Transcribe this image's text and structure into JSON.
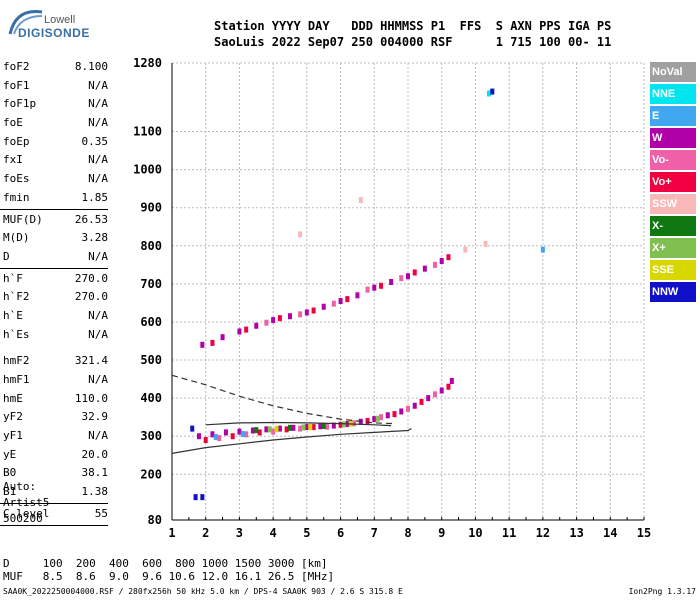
{
  "logo": {
    "brand": "Lowell",
    "product": "DIGISONDE"
  },
  "header": {
    "line1": "Station YYYY DAY   DDD HHMMSS P1  FFS  S AXN PPS IGA PS",
    "line2": "SaoLuis 2022 Sep07 250 004000 RSF      1 715 100 00- 11"
  },
  "params": {
    "group1": [
      {
        "k": "foF2",
        "v": "8.100"
      },
      {
        "k": "foF1",
        "v": "N/A"
      },
      {
        "k": "foF1p",
        "v": "N/A"
      },
      {
        "k": "foE",
        "v": "N/A"
      },
      {
        "k": "foEp",
        "v": "0.35"
      },
      {
        "k": "fxI",
        "v": "N/A"
      },
      {
        "k": "foEs",
        "v": "N/A"
      },
      {
        "k": "fmin",
        "v": "1.85"
      }
    ],
    "group2": [
      {
        "k": "MUF(D)",
        "v": "26.53"
      },
      {
        "k": "M(D)",
        "v": "3.28"
      },
      {
        "k": "D",
        "v": "N/A"
      }
    ],
    "group3": [
      {
        "k": "h`F",
        "v": "270.0"
      },
      {
        "k": "h`F2",
        "v": "270.0"
      },
      {
        "k": "h`E",
        "v": "N/A"
      },
      {
        "k": "h`Es",
        "v": "N/A"
      }
    ],
    "group4": [
      {
        "k": "hmF2",
        "v": "321.4"
      },
      {
        "k": "hmF1",
        "v": "N/A"
      },
      {
        "k": "hmE",
        "v": "110.0"
      },
      {
        "k": "yF2",
        "v": "32.9"
      },
      {
        "k": "yF1",
        "v": "N/A"
      },
      {
        "k": "yE",
        "v": "20.0"
      },
      {
        "k": "B0",
        "v": "38.1"
      },
      {
        "k": "B1",
        "v": "1.38"
      }
    ],
    "clevel": {
      "k": "C-level",
      "v": "55"
    },
    "auto": [
      "Auto:",
      "Artist5",
      "500200"
    ]
  },
  "legend": [
    {
      "name": "NoVal",
      "bg": "#a0a0a0",
      "fg": "#ffffff"
    },
    {
      "name": "NNE",
      "bg": "#00e5f0",
      "fg": "#ffffff"
    },
    {
      "name": "E",
      "bg": "#40a8f0",
      "fg": "#ffffff"
    },
    {
      "name": "W",
      "bg": "#b000a8",
      "fg": "#ffffff"
    },
    {
      "name": "Vo-",
      "bg": "#f060a8",
      "fg": "#ffffff"
    },
    {
      "name": "Vo+",
      "bg": "#f00040",
      "fg": "#ffffff"
    },
    {
      "name": "SSW",
      "bg": "#f8b8b8",
      "fg": "#ffffff"
    },
    {
      "name": "X-",
      "bg": "#107810",
      "fg": "#ffffff"
    },
    {
      "name": "X+",
      "bg": "#80c050",
      "fg": "#ffffff"
    },
    {
      "name": "SSE",
      "bg": "#d8d800",
      "fg": "#ffffff"
    },
    {
      "name": "NNW",
      "bg": "#1010c8",
      "fg": "#ffffff"
    }
  ],
  "bottom": {
    "line1": "D     100  200  400  600  800 1000 1500 3000 [km]",
    "line2": "MUF   8.5  8.6  9.0  9.6 10.6 12.0 16.1 26.5 [MHz]"
  },
  "footer": {
    "left": "SAA0K_2022250004000.RSF / 280fx256h 50 kHz 5.0 km / DPS-4 SAA0K 903 / 2.6 S 315.8 E",
    "right": "Ion2Png 1.3.17"
  },
  "chart_data": {
    "type": "scatter",
    "xlim": [
      1,
      15
    ],
    "ylim": [
      80,
      1280
    ],
    "x_ticks": [
      1,
      2,
      3,
      4,
      5,
      6,
      7,
      8,
      9,
      10,
      11,
      12,
      13,
      14,
      15
    ],
    "y_ticks": [
      80,
      200,
      300,
      400,
      500,
      600,
      700,
      800,
      900,
      1000,
      1100,
      1280
    ],
    "grid": true,
    "legend_position": "right",
    "series": [
      {
        "name": "W",
        "points": [
          [
            1.8,
            300
          ],
          [
            2.2,
            305
          ],
          [
            2.6,
            310
          ],
          [
            3.0,
            312
          ],
          [
            3.4,
            315
          ],
          [
            3.8,
            318
          ],
          [
            4.2,
            320
          ],
          [
            4.6,
            322
          ],
          [
            5.0,
            324
          ],
          [
            5.4,
            326
          ],
          [
            5.8,
            328
          ],
          [
            6.2,
            332
          ],
          [
            6.6,
            338
          ],
          [
            7.0,
            345
          ],
          [
            7.4,
            355
          ],
          [
            7.8,
            365
          ],
          [
            8.2,
            380
          ],
          [
            8.6,
            400
          ],
          [
            9.0,
            420
          ],
          [
            9.3,
            445
          ],
          [
            1.9,
            540
          ],
          [
            2.5,
            560
          ],
          [
            3.0,
            575
          ],
          [
            3.5,
            590
          ],
          [
            4.0,
            605
          ],
          [
            4.5,
            615
          ],
          [
            5.0,
            625
          ],
          [
            5.5,
            640
          ],
          [
            6.0,
            655
          ],
          [
            6.5,
            670
          ],
          [
            7.0,
            690
          ],
          [
            7.5,
            705
          ],
          [
            8.0,
            720
          ],
          [
            8.5,
            740
          ],
          [
            9.0,
            760
          ]
        ]
      },
      {
        "name": "Vo+",
        "points": [
          [
            2.0,
            290
          ],
          [
            2.8,
            300
          ],
          [
            3.6,
            310
          ],
          [
            4.4,
            318
          ],
          [
            5.2,
            324
          ],
          [
            6.0,
            330
          ],
          [
            6.8,
            340
          ],
          [
            7.6,
            358
          ],
          [
            8.4,
            390
          ],
          [
            9.2,
            430
          ],
          [
            2.2,
            545
          ],
          [
            3.2,
            580
          ],
          [
            4.2,
            610
          ],
          [
            5.2,
            630
          ],
          [
            6.2,
            660
          ],
          [
            7.2,
            695
          ],
          [
            8.2,
            730
          ],
          [
            9.2,
            770
          ]
        ]
      },
      {
        "name": "Vo-",
        "points": [
          [
            2.4,
            295
          ],
          [
            3.2,
            305
          ],
          [
            4.0,
            312
          ],
          [
            4.8,
            320
          ],
          [
            5.6,
            325
          ],
          [
            6.4,
            334
          ],
          [
            7.2,
            350
          ],
          [
            8.0,
            372
          ],
          [
            8.8,
            410
          ],
          [
            3.8,
            598
          ],
          [
            4.8,
            620
          ],
          [
            5.8,
            648
          ],
          [
            6.8,
            685
          ],
          [
            7.8,
            715
          ],
          [
            8.8,
            750
          ]
        ]
      },
      {
        "name": "NNE",
        "points": [
          [
            10.4,
            1200
          ]
        ]
      },
      {
        "name": "E",
        "points": [
          [
            2.3,
            298
          ],
          [
            3.1,
            306
          ],
          [
            12.0,
            790
          ]
        ]
      },
      {
        "name": "X-",
        "points": [
          [
            3.5,
            316
          ],
          [
            4.5,
            322
          ],
          [
            5.5,
            327
          ]
        ]
      },
      {
        "name": "X+",
        "points": [
          [
            3.9,
            318
          ],
          [
            4.9,
            323
          ],
          [
            6.1,
            331
          ],
          [
            7.1,
            346
          ]
        ]
      },
      {
        "name": "SSE",
        "points": [
          [
            4.1,
            319
          ],
          [
            5.1,
            324
          ],
          [
            6.3,
            333
          ]
        ]
      },
      {
        "name": "SSW",
        "points": [
          [
            6.6,
            920
          ],
          [
            4.8,
            830
          ],
          [
            9.7,
            790
          ],
          [
            10.3,
            805
          ]
        ]
      },
      {
        "name": "NNW",
        "points": [
          [
            1.7,
            140
          ],
          [
            1.9,
            140
          ],
          [
            10.5,
            1205
          ],
          [
            1.6,
            320
          ]
        ]
      }
    ],
    "curves": [
      {
        "name": "dashed",
        "style": "dashed",
        "points": [
          [
            1.0,
            460
          ],
          [
            2.0,
            435
          ],
          [
            3.0,
            405
          ],
          [
            4.0,
            380
          ],
          [
            5.0,
            360
          ],
          [
            6.0,
            345
          ],
          [
            7.0,
            335
          ],
          [
            7.6,
            333
          ]
        ]
      },
      {
        "name": "solid-lower",
        "style": "solid",
        "points": [
          [
            1.0,
            255
          ],
          [
            2.0,
            270
          ],
          [
            3.0,
            280
          ],
          [
            4.0,
            290
          ],
          [
            5.0,
            298
          ],
          [
            6.0,
            305
          ],
          [
            7.0,
            310
          ],
          [
            8.0,
            315
          ],
          [
            8.1,
            320
          ]
        ]
      },
      {
        "name": "solid-upper",
        "style": "solid",
        "points": [
          [
            2.0,
            330
          ],
          [
            3.0,
            335
          ],
          [
            4.0,
            336
          ],
          [
            5.0,
            335
          ],
          [
            6.0,
            333
          ],
          [
            7.0,
            330
          ],
          [
            7.5,
            328
          ]
        ]
      }
    ]
  }
}
